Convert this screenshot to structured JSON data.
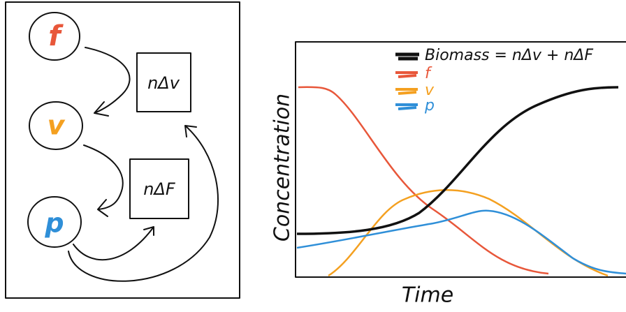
{
  "diagram": {
    "nodes": [
      {
        "label": "f"
      },
      {
        "label": "v"
      },
      {
        "label": "p"
      }
    ],
    "boxes": [
      {
        "label": "nΔv"
      },
      {
        "label": "nΔF"
      }
    ]
  },
  "chart": {
    "legend": [
      "Biomass = nΔv + nΔF",
      "f",
      "v",
      "p"
    ],
    "xlabel": "Time",
    "ylabel": "Concentration"
  }
}
